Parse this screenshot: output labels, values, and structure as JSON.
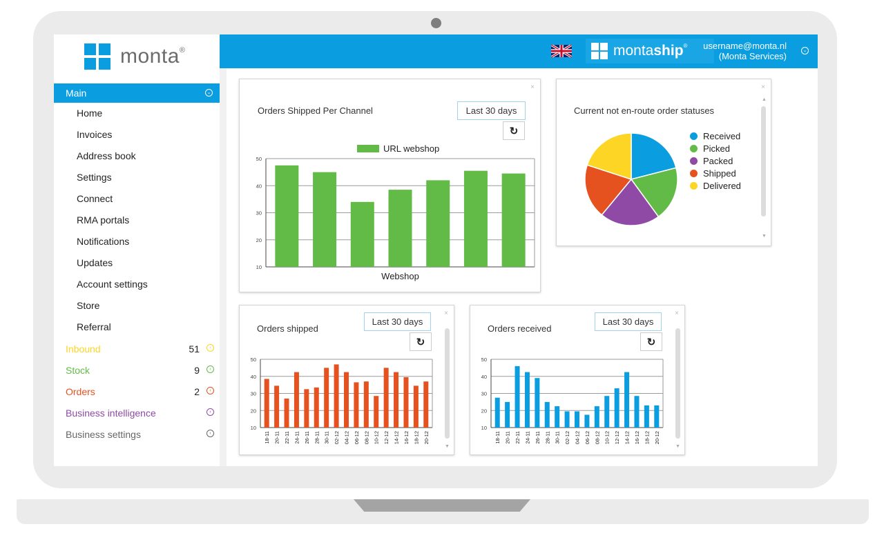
{
  "colors": {
    "accent": "#0a9ee0",
    "bar_green": "#62bb46",
    "bar_orange": "#e5511f",
    "bar_blue": "#0a9ee0",
    "inbound": "#fcd525",
    "stock": "#62bb46",
    "orders": "#e5511f",
    "bi": "#8e4aa5",
    "settings": "#666666"
  },
  "logo": {
    "text": "monta",
    "mark": "®"
  },
  "header": {
    "flag_icon": "uk-flag-icon",
    "product_prefix": "monta",
    "product_suffix": "ship",
    "product_mark": "®",
    "user_email": "username@monta.nl",
    "user_company": "(Monta Services)"
  },
  "sidebar": {
    "main_label": "Main",
    "items": [
      "Home",
      "Invoices",
      "Address book",
      "Settings",
      "Connect",
      "RMA portals",
      "Notifications",
      "Updates",
      "Account settings",
      "Store",
      "Referral"
    ],
    "groups": [
      {
        "label": "Inbound",
        "count": "51",
        "color": "#fcd525"
      },
      {
        "label": "Stock",
        "count": "9",
        "color": "#62bb46"
      },
      {
        "label": "Orders",
        "count": "2",
        "color": "#e5511f"
      },
      {
        "label": "Business intelligence",
        "count": "",
        "color": "#8e4aa5"
      },
      {
        "label": "Business settings",
        "count": "",
        "color": "#666666"
      }
    ]
  },
  "panels": {
    "channel": {
      "title": "Orders Shipped Per Channel",
      "range": "Last 30 days",
      "close": "×",
      "refresh": "↻"
    },
    "statuses": {
      "title": "Current not en-route order statuses",
      "close": "×"
    },
    "shipped": {
      "title": "Orders shipped",
      "range": "Last 30 days",
      "close": "×",
      "refresh": "↻"
    },
    "received": {
      "title": "Orders received",
      "range": "Last 30 days",
      "close": "×",
      "refresh": "↻"
    }
  },
  "chart_data": [
    {
      "type": "bar",
      "title": "Orders Shipped Per Channel",
      "legend": [
        "URL webshop"
      ],
      "xlabel": "Webshop",
      "ylim": [
        10,
        50
      ],
      "yticks": [
        10,
        20,
        30,
        40,
        50
      ],
      "values": [
        47.5,
        45,
        34,
        38.5,
        42,
        45.5,
        44.5
      ]
    },
    {
      "type": "pie",
      "title": "Current not en-route order statuses",
      "labels": [
        "Received",
        "Picked",
        "Packed",
        "Shipped",
        "Delivered"
      ],
      "values": [
        21,
        19,
        21,
        19,
        20
      ],
      "colors": [
        "#0a9ee0",
        "#62bb46",
        "#8e4aa5",
        "#e5511f",
        "#fcd525"
      ]
    },
    {
      "type": "bar",
      "title": "Orders shipped",
      "ylim": [
        10,
        50
      ],
      "yticks": [
        10,
        20,
        30,
        40,
        50
      ],
      "categories": [
        "18-11",
        "20-11",
        "22-11",
        "24-11",
        "26-11",
        "28-11",
        "30-11",
        "02-12",
        "04-12",
        "06-12",
        "08-12",
        "10-12",
        "12-12",
        "14-12",
        "16-12",
        "18-12",
        "20-12"
      ],
      "values": [
        38.5,
        34.5,
        27,
        42.5,
        32.5,
        33.5,
        45,
        47,
        42.5,
        36.5,
        37,
        28.5,
        45,
        42.5,
        39.5,
        34.5,
        37
      ]
    },
    {
      "type": "bar",
      "title": "Orders received",
      "ylim": [
        10,
        50
      ],
      "yticks": [
        10,
        20,
        30,
        40,
        50
      ],
      "categories": [
        "18-11",
        "20-11",
        "22-11",
        "24-11",
        "26-11",
        "28-11",
        "30-11",
        "02-12",
        "04-12",
        "06-12",
        "08-12",
        "10-12",
        "12-12",
        "14-12",
        "16-12",
        "18-12",
        "20-12"
      ],
      "values": [
        27.5,
        25,
        46,
        42.5,
        39,
        25,
        22.5,
        19.5,
        19.5,
        17.5,
        22.5,
        28.5,
        33,
        42.5,
        28.5,
        23,
        23
      ]
    }
  ]
}
